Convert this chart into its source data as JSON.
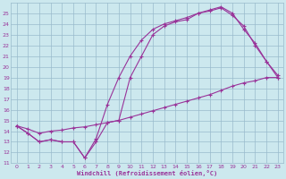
{
  "bg_color": "#cce8ee",
  "line_color": "#993399",
  "grid_color": "#99bbcc",
  "xlabel": "Windchill (Refroidissement éolien,°C)",
  "ylim": [
    11,
    26
  ],
  "xlim": [
    -0.5,
    23.5
  ],
  "yticks": [
    11,
    12,
    13,
    14,
    15,
    16,
    17,
    18,
    19,
    20,
    21,
    22,
    23,
    24,
    25
  ],
  "xticks": [
    0,
    1,
    2,
    3,
    4,
    5,
    6,
    7,
    8,
    9,
    10,
    11,
    12,
    13,
    14,
    15,
    16,
    17,
    18,
    19,
    20,
    21,
    22,
    23
  ],
  "line1_x": [
    0,
    1,
    2,
    3,
    4,
    5,
    6,
    7,
    8,
    9,
    10,
    11,
    12,
    13,
    14,
    15,
    16,
    17,
    18,
    19,
    20,
    21,
    22,
    23
  ],
  "line1_y": [
    14.5,
    13.8,
    13.0,
    13.2,
    13.0,
    13.0,
    11.5,
    13.0,
    14.8,
    15.0,
    19.0,
    21.0,
    23.0,
    23.8,
    24.2,
    24.4,
    25.0,
    25.3,
    25.6,
    25.0,
    23.5,
    22.2,
    20.5,
    19.0
  ],
  "line2_x": [
    0,
    1,
    2,
    3,
    4,
    5,
    6,
    7,
    8,
    9,
    10,
    11,
    12,
    13,
    14,
    15,
    16,
    17,
    18,
    19,
    20,
    21,
    22,
    23
  ],
  "line2_y": [
    14.5,
    13.8,
    13.0,
    13.2,
    13.0,
    13.0,
    11.5,
    13.3,
    16.5,
    19.0,
    21.0,
    22.5,
    23.5,
    24.0,
    24.3,
    24.6,
    25.0,
    25.2,
    25.5,
    24.8,
    23.8,
    22.0,
    20.5,
    19.2
  ],
  "line3_x": [
    0,
    1,
    2,
    3,
    4,
    5,
    6,
    7,
    8,
    9,
    10,
    11,
    12,
    13,
    14,
    15,
    16,
    17,
    18,
    19,
    20,
    21,
    22,
    23
  ],
  "line3_y": [
    14.5,
    14.2,
    13.8,
    14.0,
    14.1,
    14.3,
    14.4,
    14.6,
    14.8,
    15.0,
    15.3,
    15.6,
    15.9,
    16.2,
    16.5,
    16.8,
    17.1,
    17.4,
    17.8,
    18.2,
    18.5,
    18.7,
    19.0,
    19.0
  ]
}
